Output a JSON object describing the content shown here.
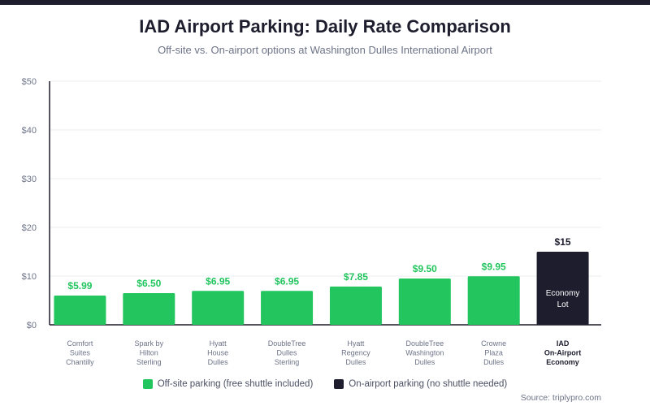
{
  "title": "IAD Airport Parking: Daily Rate Comparison",
  "subtitle": "Off-site vs. On-airport options at Washington Dulles International Airport",
  "source": "Source: triplypro.com",
  "colors": {
    "offsite": "#22c55e",
    "onairport": "#1d1d2e"
  },
  "legend": [
    {
      "label": "Off-site parking (free shuttle included)",
      "color": "#22c55e"
    },
    {
      "label": "On-airport parking (no shuttle needed)",
      "color": "#1d1d2e"
    }
  ],
  "chart_data": {
    "type": "bar",
    "title": "IAD Airport Parking: Daily Rate Comparison",
    "xlabel": "",
    "ylabel": "",
    "ylim": [
      0,
      50
    ],
    "yticks": [
      "$0",
      "$10",
      "$20",
      "$30",
      "$40",
      "$50"
    ],
    "grid": true,
    "legend_position": "bottom",
    "categories": [
      [
        "Comfort",
        "Suites",
        "Chantilly"
      ],
      [
        "Spark by",
        "Hilton",
        "Sterling"
      ],
      [
        "Hyatt",
        "House",
        "Dulles"
      ],
      [
        "DoubleTree",
        "Dulles",
        "Sterling"
      ],
      [
        "Hyatt",
        "Regency",
        "Dulles"
      ],
      [
        "DoubleTree",
        "Washington",
        "Dulles"
      ],
      [
        "Crowne",
        "Plaza",
        "Dulles"
      ],
      [
        "IAD",
        "On-Airport",
        "Economy"
      ]
    ],
    "values": [
      5.99,
      6.5,
      6.95,
      6.95,
      7.85,
      9.5,
      9.95,
      15
    ],
    "value_labels": [
      "$5.99",
      "$6.50",
      "$6.95",
      "$6.95",
      "$7.85",
      "$9.50",
      "$9.95",
      "$15"
    ],
    "bar_type": [
      "offsite",
      "offsite",
      "offsite",
      "offsite",
      "offsite",
      "offsite",
      "offsite",
      "onairport"
    ],
    "annotations": [
      {
        "bar_index": 7,
        "lines": [
          "Economy",
          "Lot"
        ]
      }
    ]
  }
}
